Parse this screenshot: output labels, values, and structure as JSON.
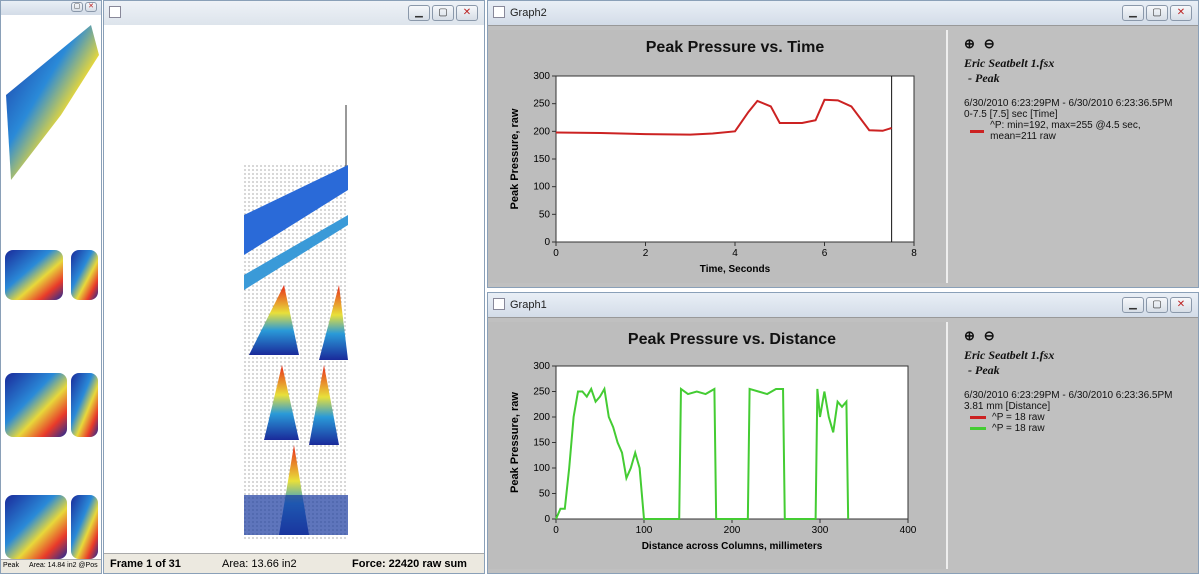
{
  "left_window": {
    "status": {
      "peak": "Peak",
      "area": "Area: 14.84 in2 @Pos"
    }
  },
  "middle_window": {
    "status": {
      "frame": "Frame 1 of 31",
      "area": "Area: 13.66 in2",
      "force": "Force: 22420 raw sum"
    }
  },
  "graph2": {
    "window_title": "Graph2",
    "info": {
      "file": "Eric Seatbelt 1.fsx",
      "sub": "- Peak",
      "range": "6/30/2010 6:23:29PM - 6/30/2010 6:23:36.5PM",
      "span": "0-7.5 [7.5] sec [Time]",
      "legend": [
        {
          "label": "^P: min=192, max=255 @4.5 sec, mean=211 raw",
          "color": "#cc2222"
        }
      ]
    }
  },
  "graph1": {
    "window_title": "Graph1",
    "info": {
      "file": "Eric Seatbelt 1.fsx",
      "sub": "- Peak",
      "range": "6/30/2010 6:23:29PM - 6/30/2010 6:23:36.5PM",
      "span": "3.81 mm [Distance]",
      "legend": [
        {
          "label": "^P = 18 raw",
          "color": "#cc2222"
        },
        {
          "label": "^P = 18 raw",
          "color": "#44cc33"
        }
      ]
    }
  },
  "window_buttons": {
    "minimize": "▁",
    "restore": "▢",
    "close": "✕",
    "zoom_in": "⊕",
    "zoom_out": "⊖"
  },
  "chart_data": [
    {
      "type": "line",
      "title": "Peak Pressure vs. Time",
      "xlabel": "Time, Seconds",
      "ylabel": "Peak Pressure, raw",
      "xlim": [
        0,
        8
      ],
      "ylim": [
        0,
        300
      ],
      "xticks": [
        0,
        2,
        4,
        6,
        8
      ],
      "yticks": [
        0,
        50,
        100,
        150,
        200,
        250,
        300
      ],
      "grid": false,
      "marker_x": 7.5,
      "series": [
        {
          "color": "#cc2222",
          "x": [
            0,
            1,
            2,
            3,
            3.5,
            4,
            4.3,
            4.5,
            4.8,
            5,
            5.5,
            5.8,
            6,
            6.3,
            6.6,
            7,
            7.3,
            7.5
          ],
          "y": [
            198,
            197,
            195,
            194,
            196,
            200,
            235,
            255,
            245,
            215,
            215,
            220,
            257,
            256,
            245,
            202,
            201,
            206
          ]
        }
      ]
    },
    {
      "type": "line",
      "title": "Peak Pressure vs. Distance",
      "xlabel": "Distance across Columns, millimeters",
      "ylabel": "Peak Pressure, raw",
      "xlim": [
        0,
        400
      ],
      "ylim": [
        0,
        300
      ],
      "xticks": [
        0,
        100,
        200,
        300,
        400
      ],
      "yticks": [
        0,
        50,
        100,
        150,
        200,
        250,
        300
      ],
      "grid": false,
      "series": [
        {
          "color": "#44cc33",
          "x": [
            0,
            5,
            10,
            15,
            20,
            25,
            30,
            35,
            40,
            45,
            50,
            55,
            60,
            65,
            70,
            75,
            80,
            85,
            90,
            95,
            100,
            140,
            142,
            150,
            160,
            170,
            180,
            182,
            218,
            220,
            230,
            240,
            250,
            258,
            260,
            295,
            297,
            300,
            305,
            310,
            315,
            320,
            325,
            330,
            332
          ],
          "y": [
            0,
            20,
            20,
            100,
            200,
            250,
            250,
            240,
            255,
            230,
            240,
            255,
            200,
            180,
            150,
            130,
            80,
            100,
            130,
            100,
            0,
            0,
            255,
            245,
            250,
            245,
            255,
            0,
            0,
            255,
            250,
            245,
            255,
            255,
            0,
            0,
            255,
            200,
            250,
            200,
            170,
            230,
            220,
            230,
            0
          ]
        }
      ]
    }
  ]
}
